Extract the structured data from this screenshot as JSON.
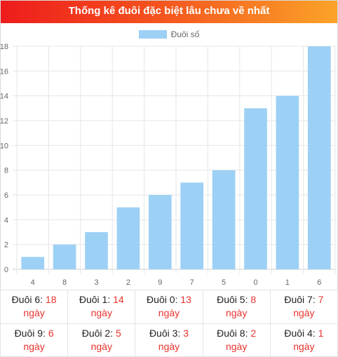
{
  "header": {
    "title": "Thống kê đuôi đặc biệt lâu chưa về nhất"
  },
  "colors": {
    "bar": "#9dd0f5",
    "accent": "#e8322e"
  },
  "chart_data": {
    "type": "bar",
    "title": "",
    "legend": "top",
    "categories": [
      "4",
      "8",
      "3",
      "2",
      "9",
      "7",
      "5",
      "0",
      "1",
      "6"
    ],
    "series": [
      {
        "name": "Đuôi số",
        "values": [
          1,
          2,
          3,
          5,
          6,
          7,
          8,
          13,
          14,
          18
        ]
      }
    ],
    "ylim": [
      0,
      18
    ],
    "yticks": [
      0,
      2,
      4,
      6,
      8,
      10,
      12,
      14,
      16,
      18
    ],
    "grid": true
  },
  "stats": [
    [
      {
        "label": "Đuôi 6:",
        "value": "18",
        "unit": "ngày"
      },
      {
        "label": "Đuôi 1:",
        "value": "14",
        "unit": "ngày"
      },
      {
        "label": "Đuôi 0:",
        "value": "13",
        "unit": "ngày"
      },
      {
        "label": "Đuôi 5:",
        "value": "8",
        "unit": "ngày"
      },
      {
        "label": "Đuôi 7:",
        "value": "7",
        "unit": "ngày"
      }
    ],
    [
      {
        "label": "Đuôi 9:",
        "value": "6",
        "unit": "ngày"
      },
      {
        "label": "Đuôi 2:",
        "value": "5",
        "unit": "ngày"
      },
      {
        "label": "Đuôi 3:",
        "value": "3",
        "unit": "ngày"
      },
      {
        "label": "Đuôi 8:",
        "value": "2",
        "unit": "ngày"
      },
      {
        "label": "Đuôi 4:",
        "value": "1",
        "unit": "ngày"
      }
    ]
  ]
}
